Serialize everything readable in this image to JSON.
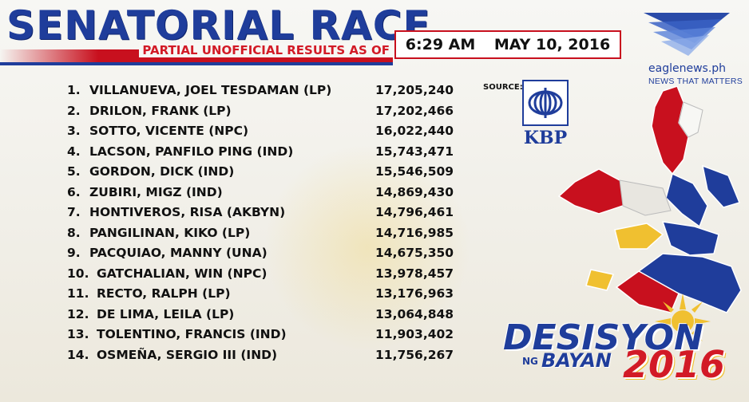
{
  "header": {
    "title": "SENATORIAL RACE",
    "subtitle": "PARTIAL UNOFFICIAL RESULTS AS OF",
    "time": "6:29 AM",
    "date": "MAY 10, 2016"
  },
  "results": [
    {
      "rank": "1.",
      "name": "VILLANUEVA, JOEL TESDAMAN (LP)",
      "votes": "17,205,240"
    },
    {
      "rank": "2.",
      "name": "DRILON, FRANK (LP)",
      "votes": "17,202,466"
    },
    {
      "rank": "3.",
      "name": "SOTTO, VICENTE (NPC)",
      "votes": "16,022,440"
    },
    {
      "rank": "4.",
      "name": "LACSON, PANFILO PING (IND)",
      "votes": "15,743,471"
    },
    {
      "rank": "5.",
      "name": "GORDON, DICK (IND)",
      "votes": "15,546,509"
    },
    {
      "rank": "6.",
      "name": "ZUBIRI, MIGZ (IND)",
      "votes": "14,869,430"
    },
    {
      "rank": "7.",
      "name": "HONTIVEROS, RISA (AKBYN)",
      "votes": "14,796,461"
    },
    {
      "rank": "8.",
      "name": "PANGILINAN, KIKO (LP)",
      "votes": "14,716,985"
    },
    {
      "rank": "9.",
      "name": "PACQUIAO, MANNY (UNA)",
      "votes": "14,675,350"
    },
    {
      "rank": "10.",
      "name": "GATCHALIAN, WIN (NPC)",
      "votes": "13,978,457"
    },
    {
      "rank": "11.",
      "name": "RECTO, RALPH (LP)",
      "votes": "13,176,963"
    },
    {
      "rank": "12.",
      "name": "DE LIMA, LEILA (LP)",
      "votes": "13,064,848"
    },
    {
      "rank": "13.",
      "name": "TOLENTINO, FRANCIS (IND)",
      "votes": "11,903,402"
    },
    {
      "rank": "14.",
      "name": "OSMEÑA, SERGIO III (IND)",
      "votes": "11,756,267"
    }
  ],
  "source": {
    "label": "SOURCE:",
    "logo_text": "KBP"
  },
  "brand": {
    "site": "eaglenews.ph",
    "tagline": "NEWS THAT MATTERS"
  },
  "show_logo": {
    "main": "DESISYON",
    "ng": "NG",
    "bayan": "BAYAN",
    "year": "2016"
  },
  "colors": {
    "primary_blue": "#1f3d9b",
    "accent_red": "#c8101e",
    "flag_yellow": "#f0c030"
  }
}
